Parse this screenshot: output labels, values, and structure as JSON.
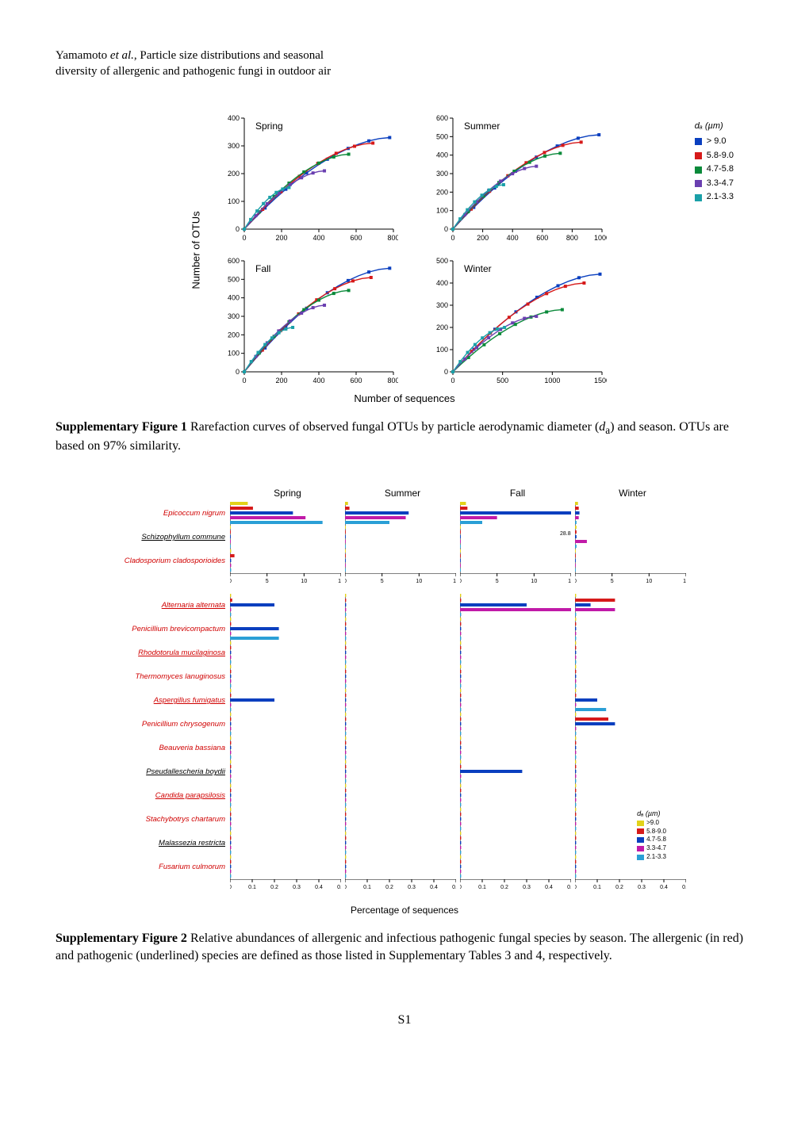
{
  "header": {
    "line1_prefix": "Yamamoto ",
    "line1_italic": "et al.",
    "line1_suffix": ", Particle size distributions and seasonal",
    "line2": "diversity of allergenic and pathogenic fungi in outdoor air"
  },
  "figure1": {
    "type": "rarefaction_multiline",
    "ylabel": "Number of OTUs",
    "xlabel": "Number of sequences",
    "legend_title": "dₐ (µm)",
    "series": [
      {
        "label": "> 9.0",
        "color": "#0a3fbf"
      },
      {
        "label": "5.8-9.0",
        "color": "#d61a1a"
      },
      {
        "label": "4.7-5.8",
        "color": "#0a8a3a"
      },
      {
        "label": "3.3-4.7",
        "color": "#6a3fb0"
      },
      {
        "label": "2.1-3.3",
        "color": "#1aa0a8"
      }
    ],
    "panels": [
      {
        "title": "Spring",
        "xlim": [
          0,
          800
        ],
        "ylim": [
          0,
          400
        ],
        "xticks": [
          0,
          200,
          400,
          600,
          800
        ],
        "yticks": [
          0,
          100,
          200,
          300,
          400
        ],
        "max_x": [
          780,
          690,
          560,
          430,
          240
        ],
        "max_y": [
          330,
          310,
          270,
          210,
          150
        ]
      },
      {
        "title": "Summer",
        "xlim": [
          0,
          1000
        ],
        "ylim": [
          0,
          600
        ],
        "xticks": [
          0,
          200,
          400,
          600,
          800,
          1000
        ],
        "yticks": [
          0,
          100,
          200,
          300,
          400,
          500,
          600
        ],
        "max_x": [
          980,
          860,
          720,
          560,
          340
        ],
        "max_y": [
          510,
          470,
          410,
          340,
          240
        ]
      },
      {
        "title": "Fall",
        "xlim": [
          0,
          800
        ],
        "ylim": [
          0,
          600
        ],
        "xticks": [
          0,
          200,
          400,
          600,
          800
        ],
        "yticks": [
          0,
          100,
          200,
          300,
          400,
          500,
          600
        ],
        "max_x": [
          780,
          680,
          560,
          430,
          260
        ],
        "max_y": [
          560,
          510,
          440,
          360,
          240
        ]
      },
      {
        "title": "Winter",
        "xlim": [
          0,
          1500
        ],
        "ylim": [
          0,
          500
        ],
        "xticks": [
          0,
          500,
          1000,
          1500
        ],
        "yticks": [
          0,
          100,
          200,
          300,
          400,
          500
        ],
        "max_x": [
          1480,
          1320,
          1100,
          840,
          520
        ],
        "max_y": [
          440,
          400,
          280,
          250,
          200
        ]
      }
    ]
  },
  "caption1": {
    "bold": "Supplementary Figure 1",
    "text1": " Rarefaction curves of observed fungal OTUs by particle aerodynamic diameter (",
    "italic": "d",
    "sub": "a",
    "text2": ") and season. OTUs are based on 97% similarity."
  },
  "figure2": {
    "type": "grouped_horizontal_bars",
    "xlabel": "Percentage of sequences",
    "columns": [
      "Spring",
      "Summer",
      "Fall",
      "Winter"
    ],
    "legend_title": "dₐ (µm)",
    "series": [
      {
        "label": ">9.0",
        "color": "#e2d21a"
      },
      {
        "label": "5.8-9.0",
        "color": "#d61a1a"
      },
      {
        "label": "4.7-5.8",
        "color": "#0a3fbf"
      },
      {
        "label": "3.3-4.7",
        "color": "#c11aa8"
      },
      {
        "label": "2.1-3.3",
        "color": "#2a9fd6"
      }
    ],
    "group1": {
      "xlim": [
        0,
        15
      ],
      "xticks": [
        0,
        5,
        10,
        15
      ],
      "annot": "28.8",
      "rows": [
        {
          "label": "Epicoccum nigrum",
          "red": true,
          "under": false,
          "values": {
            "Spring": [
              2.4,
              3.1,
              8.5,
              10.2,
              12.5
            ],
            "Summer": [
              0.4,
              0.6,
              8.6,
              8.2,
              6.0
            ],
            "Fall": [
              0.8,
              1.0,
              28.8,
              5.0,
              3.0
            ],
            "Winter": [
              0.4,
              0.5,
              0.6,
              0.5,
              0.2
            ]
          }
        },
        {
          "label": "Schizophyllum commune",
          "red": false,
          "under": true,
          "values": {
            "Spring": [
              0.1,
              0.1,
              0.1,
              0.1,
              0.1
            ],
            "Summer": [
              0.1,
              0.1,
              0.1,
              0.1,
              0.1
            ],
            "Fall": [
              0.1,
              0.1,
              0.1,
              0.1,
              0.1
            ],
            "Winter": [
              0.2,
              0.2,
              0.2,
              1.6,
              0.2
            ]
          }
        },
        {
          "label": "Cladosporium cladosporioides",
          "red": true,
          "under": false,
          "values": {
            "Spring": [
              0.15,
              0.6,
              0.15,
              0.15,
              0.15
            ],
            "Summer": [
              0.1,
              0.1,
              0.1,
              0.1,
              0.1
            ],
            "Fall": [
              0.1,
              0.1,
              0.1,
              0.1,
              0.1
            ],
            "Winter": [
              0.1,
              0.1,
              0.1,
              0.1,
              0.1
            ]
          }
        }
      ]
    },
    "group2": {
      "xlim": [
        0,
        0.5
      ],
      "xticks": [
        0,
        0.1,
        0.2,
        0.3,
        0.4,
        0.5
      ],
      "rows": [
        {
          "label": "Alternaria alternata",
          "red": true,
          "under": true,
          "values": {
            "Spring": [
              0.005,
              0.01,
              0.2,
              0.005,
              0.005
            ],
            "Summer": [
              0.005,
              0.005,
              0.005,
              0.005,
              0.005
            ],
            "Fall": [
              0.005,
              0.005,
              0.3,
              0.5,
              0.005
            ],
            "Winter": [
              0.005,
              0.18,
              0.07,
              0.18,
              0.005
            ]
          }
        },
        {
          "label": "Penicillium brevicompactum",
          "red": true,
          "under": false,
          "values": {
            "Spring": [
              0.005,
              0.005,
              0.22,
              0.005,
              0.22
            ],
            "Summer": [
              0.005,
              0.005,
              0.005,
              0.005,
              0.005
            ],
            "Fall": [
              0.005,
              0.005,
              0.005,
              0.005,
              0.005
            ],
            "Winter": [
              0.005,
              0.005,
              0.005,
              0.005,
              0.005
            ]
          }
        },
        {
          "label": "Rhodotorula mucilaginosa",
          "red": true,
          "under": true,
          "values": {
            "Spring": [
              0.005,
              0.005,
              0.005,
              0.005,
              0.005
            ],
            "Summer": [
              0.005,
              0.005,
              0.005,
              0.005,
              0.005
            ],
            "Fall": [
              0.005,
              0.005,
              0.005,
              0.005,
              0.005
            ],
            "Winter": [
              0.005,
              0.005,
              0.005,
              0.005,
              0.005
            ]
          }
        },
        {
          "label": "Thermomyces lanuginosus",
          "red": true,
          "under": false,
          "values": {
            "Spring": [
              0.005,
              0.005,
              0.005,
              0.005,
              0.005
            ],
            "Summer": [
              0.005,
              0.005,
              0.005,
              0.005,
              0.005
            ],
            "Fall": [
              0.005,
              0.005,
              0.005,
              0.005,
              0.005
            ],
            "Winter": [
              0.005,
              0.005,
              0.005,
              0.005,
              0.005
            ]
          }
        },
        {
          "label": "Aspergillus fumigatus",
          "red": true,
          "under": true,
          "values": {
            "Spring": [
              0.005,
              0.005,
              0.2,
              0.005,
              0.005
            ],
            "Summer": [
              0.005,
              0.005,
              0.005,
              0.005,
              0.005
            ],
            "Fall": [
              0.005,
              0.005,
              0.005,
              0.005,
              0.005
            ],
            "Winter": [
              0.005,
              0.005,
              0.1,
              0.005,
              0.14
            ]
          }
        },
        {
          "label": "Penicillium chrysogenum",
          "red": true,
          "under": false,
          "values": {
            "Spring": [
              0.005,
              0.005,
              0.005,
              0.005,
              0.005
            ],
            "Summer": [
              0.005,
              0.005,
              0.005,
              0.005,
              0.005
            ],
            "Fall": [
              0.005,
              0.005,
              0.005,
              0.005,
              0.005
            ],
            "Winter": [
              0.005,
              0.15,
              0.18,
              0.005,
              0.005
            ]
          }
        },
        {
          "label": "Beauveria bassiana",
          "red": true,
          "under": false,
          "values": {
            "Spring": [
              0.005,
              0.005,
              0.005,
              0.005,
              0.005
            ],
            "Summer": [
              0.005,
              0.005,
              0.005,
              0.005,
              0.005
            ],
            "Fall": [
              0.005,
              0.005,
              0.005,
              0.005,
              0.005
            ],
            "Winter": [
              0.005,
              0.005,
              0.005,
              0.005,
              0.005
            ]
          }
        },
        {
          "label": "Pseudallescheria boydii",
          "red": false,
          "under": true,
          "values": {
            "Spring": [
              0.005,
              0.005,
              0.005,
              0.005,
              0.005
            ],
            "Summer": [
              0.005,
              0.005,
              0.005,
              0.005,
              0.005
            ],
            "Fall": [
              0.005,
              0.005,
              0.28,
              0.005,
              0.005
            ],
            "Winter": [
              0.005,
              0.005,
              0.005,
              0.005,
              0.005
            ]
          }
        },
        {
          "label": "Candida parapsilosis",
          "red": true,
          "under": true,
          "values": {
            "Spring": [
              0.005,
              0.005,
              0.005,
              0.005,
              0.005
            ],
            "Summer": [
              0.005,
              0.005,
              0.005,
              0.005,
              0.005
            ],
            "Fall": [
              0.005,
              0.005,
              0.005,
              0.005,
              0.005
            ],
            "Winter": [
              0.005,
              0.005,
              0.005,
              0.005,
              0.005
            ]
          }
        },
        {
          "label": "Stachybotrys chartarum",
          "red": true,
          "under": false,
          "values": {
            "Spring": [
              0.005,
              0.005,
              0.005,
              0.005,
              0.005
            ],
            "Summer": [
              0.005,
              0.005,
              0.005,
              0.005,
              0.005
            ],
            "Fall": [
              0.005,
              0.005,
              0.005,
              0.005,
              0.005
            ],
            "Winter": [
              0.005,
              0.005,
              0.005,
              0.005,
              0.005
            ]
          }
        },
        {
          "label": "Malassezia restricta",
          "red": false,
          "under": true,
          "values": {
            "Spring": [
              0.005,
              0.005,
              0.005,
              0.005,
              0.005
            ],
            "Summer": [
              0.005,
              0.005,
              0.005,
              0.005,
              0.005
            ],
            "Fall": [
              0.005,
              0.005,
              0.005,
              0.005,
              0.005
            ],
            "Winter": [
              0.005,
              0.005,
              0.005,
              0.005,
              0.005
            ]
          }
        },
        {
          "label": "Fusarium culmorum",
          "red": true,
          "under": false,
          "values": {
            "Spring": [
              0.005,
              0.005,
              0.005,
              0.005,
              0.005
            ],
            "Summer": [
              0.005,
              0.005,
              0.005,
              0.005,
              0.005
            ],
            "Fall": [
              0.005,
              0.005,
              0.005,
              0.005,
              0.005
            ],
            "Winter": [
              0.005,
              0.005,
              0.005,
              0.005,
              0.005
            ]
          }
        }
      ]
    }
  },
  "caption2": {
    "bold": "Supplementary Figure 2",
    "text": " Relative abundances of allergenic and infectious pathogenic fungal species by season. The allergenic (in red) and pathogenic (underlined) species are defined as those listed in Supplementary Tables 3 and 4, respectively."
  },
  "pagenum": "S1"
}
